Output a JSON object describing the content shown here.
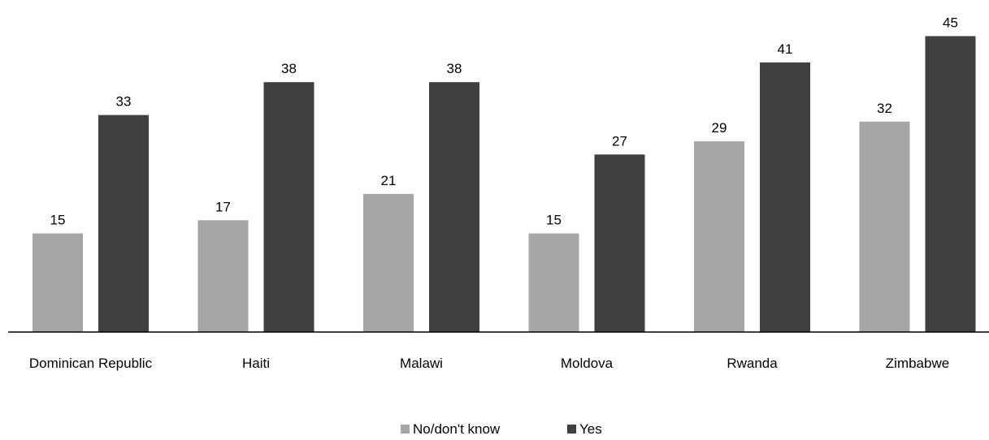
{
  "chart_data": {
    "type": "bar",
    "categories": [
      "Dominican Republic",
      "Haiti",
      "Malawi",
      "Moldova",
      "Rwanda",
      "Zimbabwe"
    ],
    "series": [
      {
        "name": "No/don't know",
        "color": "#a6a6a6",
        "values": [
          15,
          17,
          21,
          15,
          29,
          32
        ]
      },
      {
        "name": "Yes",
        "color": "#404040",
        "values": [
          33,
          38,
          38,
          27,
          41,
          45
        ]
      }
    ],
    "title": "",
    "xlabel": "",
    "ylabel": "",
    "ylim": [
      0,
      45
    ],
    "grid": false,
    "legend_position": "bottom-center",
    "data_labels": true
  }
}
